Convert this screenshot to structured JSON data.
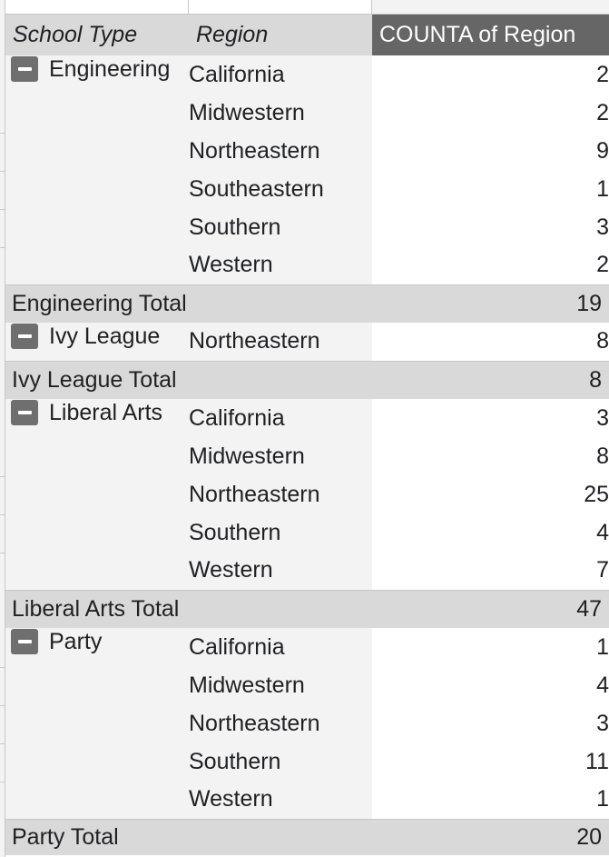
{
  "headers": {
    "school_type": "School Type",
    "region": "Region",
    "count": "COUNTA of Region"
  },
  "groups": [
    {
      "name": "Engineering",
      "rows": [
        {
          "region": "California",
          "count": "2"
        },
        {
          "region": "Midwestern",
          "count": "2"
        },
        {
          "region": "Northeastern",
          "count": "9"
        },
        {
          "region": "Southeastern",
          "count": "1"
        },
        {
          "region": "Southern",
          "count": "3"
        },
        {
          "region": "Western",
          "count": "2"
        }
      ],
      "total_label": "Engineering Total",
      "total": "19"
    },
    {
      "name": "Ivy League",
      "rows": [
        {
          "region": "Northeastern",
          "count": "8"
        }
      ],
      "total_label": "Ivy League Total",
      "total": "8"
    },
    {
      "name": "Liberal Arts",
      "rows": [
        {
          "region": "California",
          "count": "3"
        },
        {
          "region": "Midwestern",
          "count": "8"
        },
        {
          "region": "Northeastern",
          "count": "25"
        },
        {
          "region": "Southern",
          "count": "4"
        },
        {
          "region": "Western",
          "count": "7"
        }
      ],
      "total_label": "Liberal Arts Total",
      "total": "47"
    },
    {
      "name": "Party",
      "rows": [
        {
          "region": "California",
          "count": "1"
        },
        {
          "region": "Midwestern",
          "count": "4"
        },
        {
          "region": "Northeastern",
          "count": "3"
        },
        {
          "region": "Southern",
          "count": "11"
        },
        {
          "region": "Western",
          "count": "1"
        }
      ],
      "total_label": "Party Total",
      "total": "20"
    }
  ],
  "colors": {
    "header_bg": "#d9d9d9",
    "value_header_bg": "#666666",
    "row_bg": "#f3f3f3",
    "collapse_button": "#6f6f6f"
  },
  "icons": {
    "collapse": "minus-icon"
  }
}
